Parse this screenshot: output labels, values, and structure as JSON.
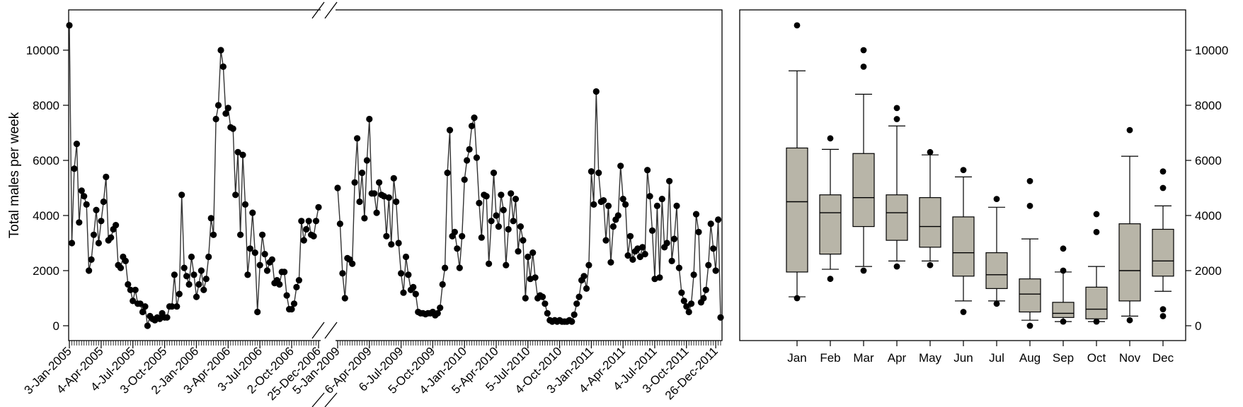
{
  "chart_data": [
    {
      "type": "line",
      "name": "weekly-series",
      "ylabel": "Total males per week",
      "ylim": [
        0,
        11000
      ],
      "yticks": [
        0,
        2000,
        4000,
        6000,
        8000,
        10000
      ],
      "ytick_labels": [
        "0",
        "2000",
        "4000",
        "6000",
        "8000",
        "10000"
      ],
      "axis_break": "between 25-Dec-2006 and 5-Jan-2009",
      "x_tick_labels": [
        "3-Jan-2005",
        "4-Apr-2005",
        "4-Jul-2005",
        "3-Oct-2005",
        "2-Jan-2006",
        "3-Apr-2006",
        "3-Jul-2006",
        "2-Oct-2006",
        "25-Dec-2006",
        "5-Jan-2009",
        "6-Apr-2009",
        "6-Jul-2009",
        "5-Oct-2009",
        "4-Jan-2010",
        "5-Apr-2010",
        "5-Jul-2010",
        "4-Oct-2010",
        "3-Jan-2011",
        "4-Apr-2011",
        "4-Jul-2011",
        "3-Oct-2011",
        "26-Dec-2011"
      ],
      "segments": [
        {
          "period": "3-Jan-2005 to 25-Dec-2006",
          "values": [
            10900,
            3000,
            5700,
            6600,
            3750,
            4900,
            4700,
            4400,
            2000,
            2400,
            3300,
            4200,
            3000,
            3800,
            4500,
            5400,
            3100,
            3200,
            3500,
            3650,
            2200,
            2100,
            2500,
            2350,
            1500,
            1300,
            900,
            1300,
            800,
            800,
            500,
            700,
            0,
            350,
            250,
            200,
            300,
            250,
            450,
            300,
            300,
            700,
            700,
            1850,
            700,
            1150,
            4750,
            2100,
            1800,
            1500,
            2500,
            1850,
            1050,
            1500,
            2000,
            1300,
            1700,
            2500,
            3900,
            3300,
            7500,
            8000,
            10000,
            9400,
            7700,
            7900,
            7200,
            7150,
            4750,
            6300,
            3300,
            6200,
            4400,
            1850,
            2800,
            4100,
            2650,
            500,
            2200,
            3300,
            2600,
            2000,
            2300,
            2400,
            1550,
            1650,
            1500,
            1950,
            1950,
            1100,
            600,
            600,
            800,
            1400,
            1650,
            3800,
            3100,
            3500,
            3800,
            3300,
            3250,
            3800,
            4300
          ]
        },
        {
          "period": "5-Jan-2009 to 26-Dec-2011",
          "values": [
            5000,
            3700,
            1900,
            1000,
            2450,
            2400,
            2250,
            5200,
            6800,
            4500,
            5550,
            3900,
            6000,
            7500,
            4800,
            4800,
            4100,
            5200,
            4750,
            4700,
            3250,
            4650,
            2950,
            5350,
            4500,
            3000,
            1900,
            1200,
            2500,
            1850,
            1300,
            1400,
            1150,
            500,
            450,
            450,
            420,
            450,
            450,
            500,
            380,
            450,
            650,
            1500,
            2100,
            5550,
            7100,
            3250,
            3400,
            2800,
            2100,
            3250,
            5300,
            6000,
            6400,
            7250,
            7550,
            6100,
            4450,
            3200,
            4750,
            4700,
            2250,
            3800,
            5550,
            4000,
            3600,
            4750,
            4200,
            2200,
            3500,
            4800,
            3800,
            4600,
            2700,
            3600,
            3100,
            1000,
            2500,
            1700,
            2650,
            1750,
            1000,
            1100,
            1050,
            800,
            450,
            200,
            150,
            200,
            150,
            200,
            150,
            150,
            150,
            200,
            150,
            400,
            800,
            1050,
            1650,
            1800,
            1350,
            2200,
            5600,
            4400,
            8500,
            5550,
            4500,
            4550,
            3100,
            4350,
            2300,
            3600,
            3850,
            4000,
            5800,
            4600,
            4400,
            2550,
            3250,
            2400,
            2700,
            2800,
            2500,
            2850,
            2600,
            5650,
            4700,
            3450,
            1700,
            4350,
            1750,
            4600,
            2850,
            3000,
            5250,
            2350,
            3150,
            4350,
            2100,
            1200,
            900,
            700,
            500,
            800,
            1850,
            4050,
            3400,
            850,
            1000,
            1300,
            2200,
            3700,
            2800,
            2000,
            3850,
            300
          ]
        }
      ]
    },
    {
      "type": "boxplot",
      "name": "monthly-boxplot",
      "ylim": [
        0,
        11000
      ],
      "yticks": [
        0,
        2000,
        4000,
        6000,
        8000,
        10000
      ],
      "ytick_labels": [
        "0",
        "2000",
        "4000",
        "6000",
        "8000",
        "10000"
      ],
      "categories": [
        "Jan",
        "Feb",
        "Mar",
        "Apr",
        "May",
        "Jun",
        "Jul",
        "Aug",
        "Sep",
        "Oct",
        "Nov",
        "Dec"
      ],
      "boxes": [
        {
          "whisker_low": 1050,
          "q1": 1950,
          "median": 4500,
          "q3": 6450,
          "whisker_high": 9250,
          "outliers": [
            10900,
            1000
          ]
        },
        {
          "whisker_low": 2050,
          "q1": 2600,
          "median": 4100,
          "q3": 4750,
          "whisker_high": 6400,
          "outliers": [
            6800,
            1700
          ]
        },
        {
          "whisker_low": 2150,
          "q1": 3600,
          "median": 4650,
          "q3": 6250,
          "whisker_high": 8400,
          "outliers": [
            10000,
            9400,
            2000
          ]
        },
        {
          "whisker_low": 2350,
          "q1": 3100,
          "median": 4100,
          "q3": 4750,
          "whisker_high": 7250,
          "outliers": [
            7900,
            7500,
            2150
          ]
        },
        {
          "whisker_low": 2350,
          "q1": 2850,
          "median": 3600,
          "q3": 4650,
          "whisker_high": 6200,
          "outliers": [
            6300,
            2200
          ]
        },
        {
          "whisker_low": 900,
          "q1": 1800,
          "median": 2650,
          "q3": 3950,
          "whisker_high": 5400,
          "outliers": [
            5650,
            500
          ]
        },
        {
          "whisker_low": 900,
          "q1": 1350,
          "median": 1850,
          "q3": 2650,
          "whisker_high": 4300,
          "outliers": [
            4600,
            800
          ]
        },
        {
          "whisker_low": 200,
          "q1": 500,
          "median": 1150,
          "q3": 1700,
          "whisker_high": 3150,
          "outliers": [
            5250,
            4350,
            0
          ]
        },
        {
          "whisker_low": 150,
          "q1": 300,
          "median": 450,
          "q3": 850,
          "whisker_high": 1950,
          "outliers": [
            2800,
            2000,
            150
          ]
        },
        {
          "whisker_low": 150,
          "q1": 250,
          "median": 600,
          "q3": 1400,
          "whisker_high": 2150,
          "outliers": [
            4050,
            3400,
            150
          ]
        },
        {
          "whisker_low": 350,
          "q1": 900,
          "median": 2000,
          "q3": 3700,
          "whisker_high": 6150,
          "outliers": [
            7100,
            200
          ]
        },
        {
          "whisker_low": 1250,
          "q1": 1800,
          "median": 2350,
          "q3": 3500,
          "whisker_high": 4350,
          "outliers": [
            5600,
            5000,
            600,
            350
          ]
        }
      ],
      "box_color": "#b8b5a8"
    }
  ]
}
